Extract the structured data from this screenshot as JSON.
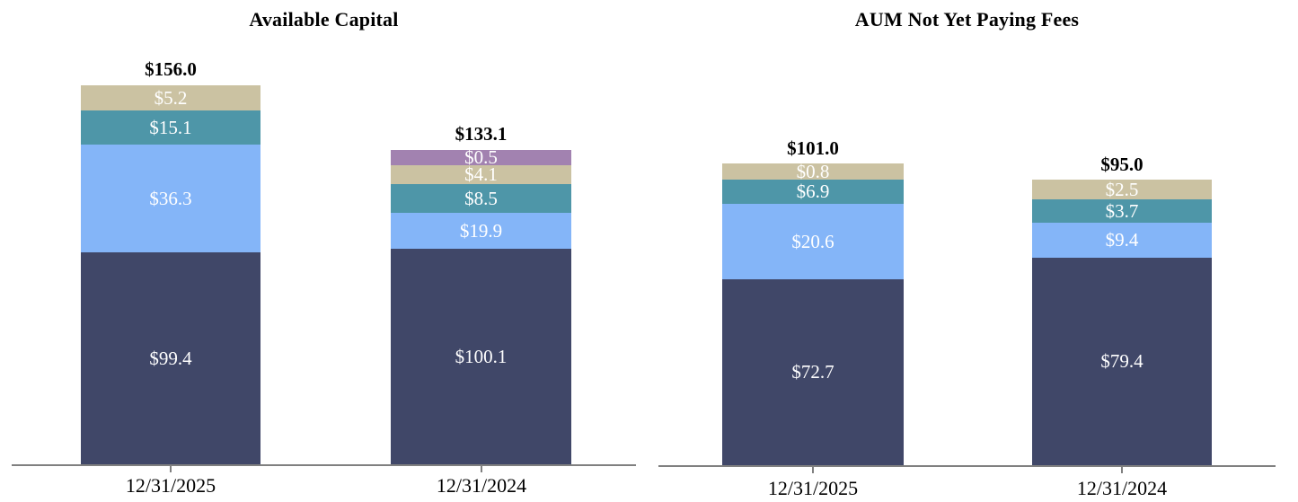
{
  "colors": {
    "navy": "#404768",
    "light_blue": "#84B5F8",
    "teal": "#4E96A8",
    "tan": "#CBC2A2",
    "purple": "#A282B0",
    "axis": "#808080",
    "segment_label": "#FFFFFF",
    "text": "#000000"
  },
  "chart_data": [
    {
      "type": "bar",
      "stacked": true,
      "title": "Available Capital",
      "categories": [
        "12/31/2025",
        "12/31/2024"
      ],
      "legend": "none",
      "grid": false,
      "value_prefix": "$",
      "bars": [
        {
          "category": "12/31/2025",
          "total": 156.0,
          "total_label": "$156.0",
          "segments": [
            {
              "color_key": "navy",
              "value": 99.4,
              "label": "$99.4"
            },
            {
              "color_key": "light_blue",
              "value": 36.3,
              "label": "$36.3"
            },
            {
              "color_key": "teal",
              "value": 15.1,
              "label": "$15.1"
            },
            {
              "color_key": "tan",
              "value": 5.2,
              "label": "$5.2"
            }
          ]
        },
        {
          "category": "12/31/2024",
          "total": 133.1,
          "total_label": "$133.1",
          "segments": [
            {
              "color_key": "navy",
              "value": 100.1,
              "label": "$100.1"
            },
            {
              "color_key": "light_blue",
              "value": 19.9,
              "label": "$19.9"
            },
            {
              "color_key": "teal",
              "value": 8.5,
              "label": "$8.5"
            },
            {
              "color_key": "tan",
              "value": 4.1,
              "label": "$4.1"
            },
            {
              "color_key": "purple",
              "value": 0.5,
              "label": "$0.5"
            }
          ]
        }
      ]
    },
    {
      "type": "bar",
      "stacked": true,
      "title": "AUM Not Yet Paying Fees",
      "categories": [
        "12/31/2025",
        "12/31/2024"
      ],
      "legend": "none",
      "grid": false,
      "value_prefix": "$",
      "bars": [
        {
          "category": "12/31/2025",
          "total": 101.0,
          "total_label": "$101.0",
          "segments": [
            {
              "color_key": "navy",
              "value": 72.7,
              "label": "$72.7"
            },
            {
              "color_key": "light_blue",
              "value": 20.6,
              "label": "$20.6"
            },
            {
              "color_key": "teal",
              "value": 6.9,
              "label": "$6.9"
            },
            {
              "color_key": "tan",
              "value": 0.8,
              "label": "$0.8"
            }
          ]
        },
        {
          "category": "12/31/2024",
          "total": 95.0,
          "total_label": "$95.0",
          "segments": [
            {
              "color_key": "navy",
              "value": 79.4,
              "label": "$79.4"
            },
            {
              "color_key": "light_blue",
              "value": 9.4,
              "label": "$9.4"
            },
            {
              "color_key": "teal",
              "value": 3.7,
              "label": "$3.7"
            },
            {
              "color_key": "tan",
              "value": 2.5,
              "label": "$2.5"
            }
          ]
        }
      ]
    }
  ]
}
